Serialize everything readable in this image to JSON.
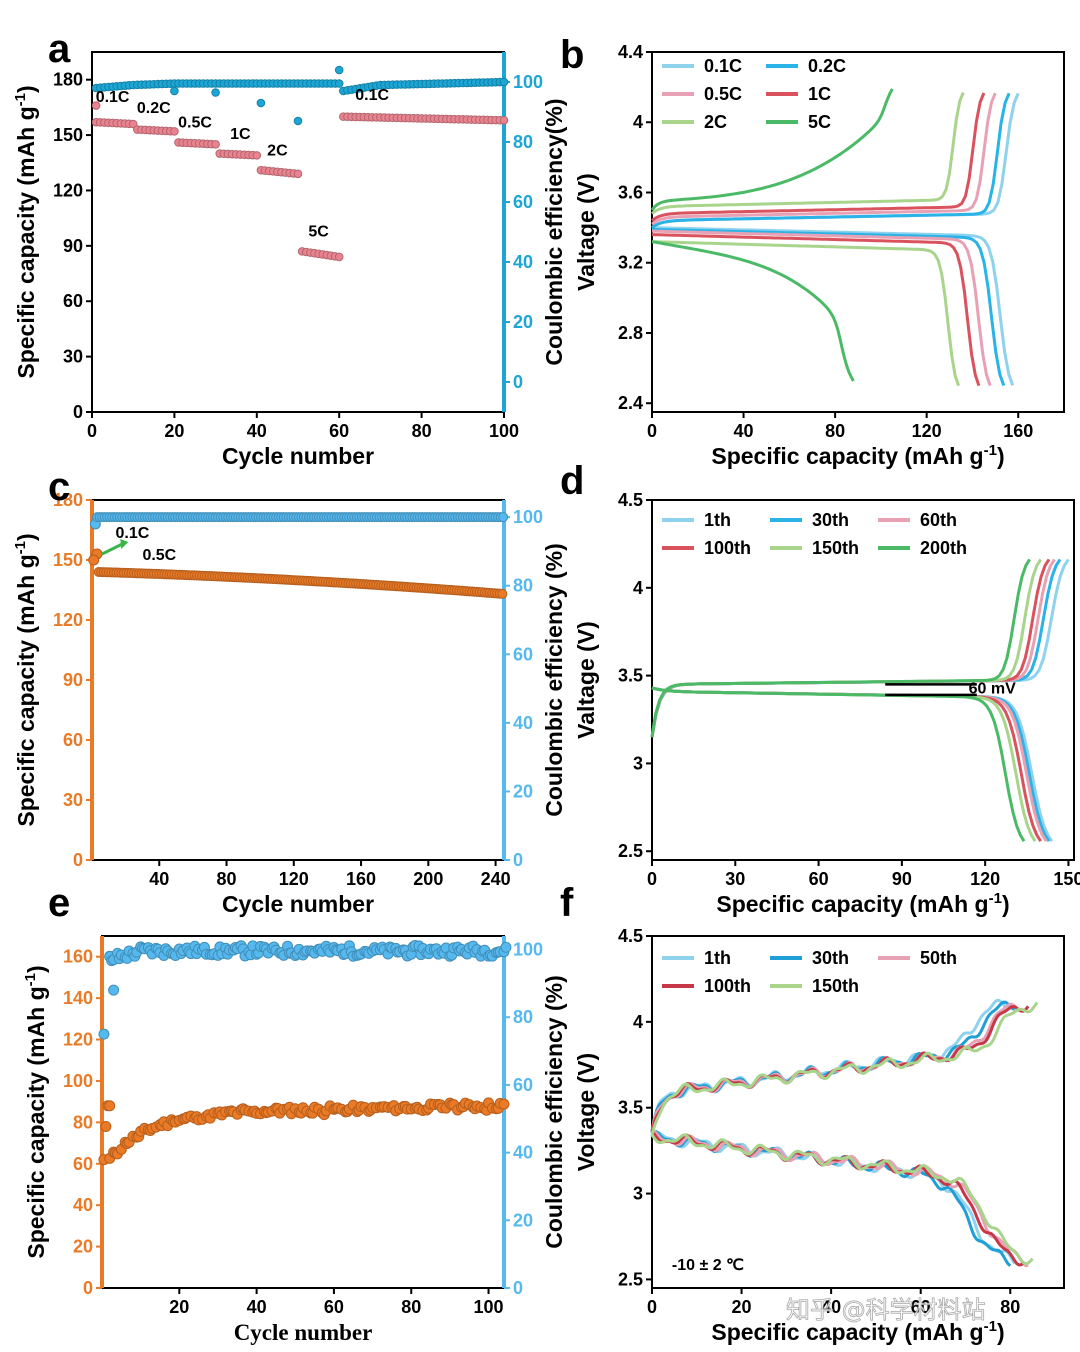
{
  "watermark": "知乎 @科学材料站",
  "chart_data": [
    {
      "id": "a",
      "type": "scatter",
      "panel_label": "a",
      "xlabel": "Cycle number",
      "ylabel": "Specific capacity (mAh g⁻¹)",
      "y2label": "Coulombic efficiency(%)",
      "xlim": [
        0,
        100
      ],
      "ylim": [
        0,
        195
      ],
      "y2lim": [
        -10,
        110
      ],
      "xticks": [
        0,
        20,
        40,
        60,
        80,
        100
      ],
      "yticks": [
        0,
        30,
        60,
        90,
        120,
        150,
        180
      ],
      "y2ticks": [
        0,
        20,
        40,
        60,
        80,
        100
      ],
      "series": [
        {
          "name": "Specific capacity",
          "axis": "left",
          "color": "#e8838f",
          "segments": [
            [
              1,
              10,
              157,
              156
            ],
            [
              11,
              20,
              153,
              152
            ],
            [
              21,
              30,
              146,
              145
            ],
            [
              31,
              40,
              140,
              139
            ],
            [
              41,
              50,
              131,
              129
            ],
            [
              51,
              60,
              87,
              84
            ],
            [
              61,
              100,
              160,
              158
            ]
          ]
        },
        {
          "name": "Coulombic efficiency",
          "axis": "right",
          "color": "#1ba6d6",
          "base": [
            [
              1,
              98
            ],
            [
              10,
              99
            ],
            [
              20,
              99.5
            ],
            [
              40,
              99.5
            ],
            [
              60,
              99.5
            ],
            [
              61,
              97
            ],
            [
              70,
              99
            ],
            [
              100,
              100
            ]
          ],
          "outliers": [
            [
              20,
              97
            ],
            [
              30,
              96.5
            ],
            [
              41,
              93
            ],
            [
              50,
              87
            ],
            [
              60,
              104
            ]
          ]
        }
      ],
      "annotations": [
        {
          "text": "0.1C",
          "x": 5,
          "y": 168
        },
        {
          "text": "0.2C",
          "x": 15,
          "y": 162
        },
        {
          "text": "0.5C",
          "x": 25,
          "y": 154
        },
        {
          "text": "1C",
          "x": 36,
          "y": 148
        },
        {
          "text": "2C",
          "x": 45,
          "y": 139
        },
        {
          "text": "5C",
          "x": 55,
          "y": 95
        },
        {
          "text": "0.1C",
          "x": 68,
          "y": 169
        }
      ]
    },
    {
      "id": "b",
      "type": "line",
      "panel_label": "b",
      "xlabel": "Specific capacity (mAh g⁻¹)",
      "ylabel": "Valtage (V)",
      "xlim": [
        0,
        180
      ],
      "ylim": [
        2.35,
        4.4
      ],
      "xticks": [
        0,
        40,
        80,
        120,
        160
      ],
      "yticks": [
        2.4,
        2.8,
        3.2,
        3.6,
        4.0,
        4.4
      ],
      "series": [
        {
          "name": "0.1C",
          "color": "#8ed2ee",
          "cap": 160,
          "chg": 3.44,
          "dis": 3.4
        },
        {
          "name": "0.2C",
          "color": "#29b3e6",
          "cap": 156,
          "chg": 3.44,
          "dis": 3.39
        },
        {
          "name": "0.5C",
          "color": "#e8a1b4",
          "cap": 150,
          "chg": 3.46,
          "dis": 3.38
        },
        {
          "name": "1C",
          "color": "#d9525e",
          "cap": 145,
          "chg": 3.48,
          "dis": 3.36
        },
        {
          "name": "2C",
          "color": "#a8d48c",
          "cap": 136,
          "chg": 3.52,
          "dis": 3.32
        },
        {
          "name": "5C",
          "color": "#4aba66",
          "cap": 105,
          "chg": 3.65,
          "dis": 3.2,
          "disCap": 88
        }
      ]
    },
    {
      "id": "c",
      "type": "scatter",
      "panel_label": "c",
      "xlabel": "Cycle number",
      "ylabel": "Specific capacity (mAh g⁻¹)",
      "y2label": "Coulombic efficiency (%)",
      "xlim": [
        0,
        245
      ],
      "ylim": [
        0,
        180
      ],
      "y2lim": [
        0,
        105
      ],
      "xticks": [
        40,
        80,
        120,
        160,
        200,
        240
      ],
      "yticks": [
        0,
        30,
        60,
        90,
        120,
        150,
        180
      ],
      "y2ticks": [
        0,
        20,
        40,
        60,
        80,
        100
      ],
      "series": [
        {
          "name": "Specific capacity",
          "axis": "left",
          "color": "#ea7a26",
          "start": [
            3,
            153
          ],
          "from": [
            4,
            144
          ],
          "to": [
            245,
            133
          ]
        },
        {
          "name": "Coulombic efficiency",
          "axis": "right",
          "color": "#55b8ee",
          "start": [
            2,
            98
          ],
          "value": 100
        }
      ],
      "annotations": [
        {
          "text": "0.1C",
          "x": 14,
          "y": 161
        },
        {
          "text": "0.5C",
          "x": 30,
          "y": 150
        }
      ]
    },
    {
      "id": "d",
      "type": "line",
      "panel_label": "d",
      "xlabel": "Specific capacity (mAh g⁻¹)",
      "ylabel": "Valtage (V)",
      "xlim": [
        0,
        152
      ],
      "ylim": [
        2.45,
        4.5
      ],
      "xticks": [
        0,
        30,
        60,
        90,
        120,
        150
      ],
      "yticks": [
        2.5,
        3.0,
        3.5,
        4.0,
        4.5
      ],
      "series": [
        {
          "name": "1th",
          "color": "#8ed2ee",
          "cap": 150,
          "dis": 144
        },
        {
          "name": "30th",
          "color": "#29b3e6",
          "cap": 147,
          "dis": 143
        },
        {
          "name": "60th",
          "color": "#e8a1b4",
          "cap": 145,
          "dis": 142
        },
        {
          "name": "100th",
          "color": "#d9525e",
          "cap": 143,
          "dis": 140
        },
        {
          "name": "150th",
          "color": "#a8d48c",
          "cap": 140,
          "dis": 138
        },
        {
          "name": "200th",
          "color": "#4aba66",
          "cap": 136,
          "dis": 134
        }
      ],
      "annotations": [
        {
          "text": "60 mV",
          "x": 109,
          "y": 3.41
        }
      ]
    },
    {
      "id": "e",
      "type": "scatter",
      "panel_label": "e",
      "xlabel": "Cycle number",
      "ylabel": "Specific capacity (mAh g⁻¹)",
      "y2label": "Coulombic efficiency (%)",
      "xlim": [
        0,
        104
      ],
      "ylim": [
        0,
        170
      ],
      "y2lim": [
        0,
        104
      ],
      "xticks": [
        20,
        40,
        60,
        80,
        100
      ],
      "yticks": [
        0,
        20,
        40,
        60,
        80,
        100,
        120,
        140,
        160
      ],
      "y2ticks": [
        0,
        20,
        40,
        60,
        80,
        100
      ],
      "series": [
        {
          "name": "Specific capacity",
          "axis": "left",
          "color": "#ea7a26"
        },
        {
          "name": "Coulombic efficiency",
          "axis": "right",
          "color": "#55b8ee"
        }
      ]
    },
    {
      "id": "f",
      "type": "line",
      "panel_label": "f",
      "xlabel": "Specific capacity (mAh g⁻¹)",
      "ylabel": "Voltage (V)",
      "xlim": [
        0,
        92
      ],
      "ylim": [
        2.45,
        4.5
      ],
      "xticks": [
        0,
        20,
        40,
        60,
        80
      ],
      "yticks": [
        2.5,
        3.0,
        3.5,
        4.0,
        4.5
      ],
      "series": [
        {
          "name": "1th",
          "color": "#8ed2ee",
          "cap": 79,
          "dis": 81
        },
        {
          "name": "30th",
          "color": "#1f9fd6",
          "cap": 81,
          "dis": 80
        },
        {
          "name": "50th",
          "color": "#e8a1b4",
          "cap": 83,
          "dis": 84
        },
        {
          "name": "100th",
          "color": "#c63848",
          "cap": 84,
          "dis": 83
        },
        {
          "name": "150th",
          "color": "#a8d48c",
          "cap": 86,
          "dis": 85
        }
      ],
      "annotations": [
        {
          "text": "-10 ± 2 ℃",
          "x": 4,
          "y": 2.6
        }
      ]
    }
  ]
}
